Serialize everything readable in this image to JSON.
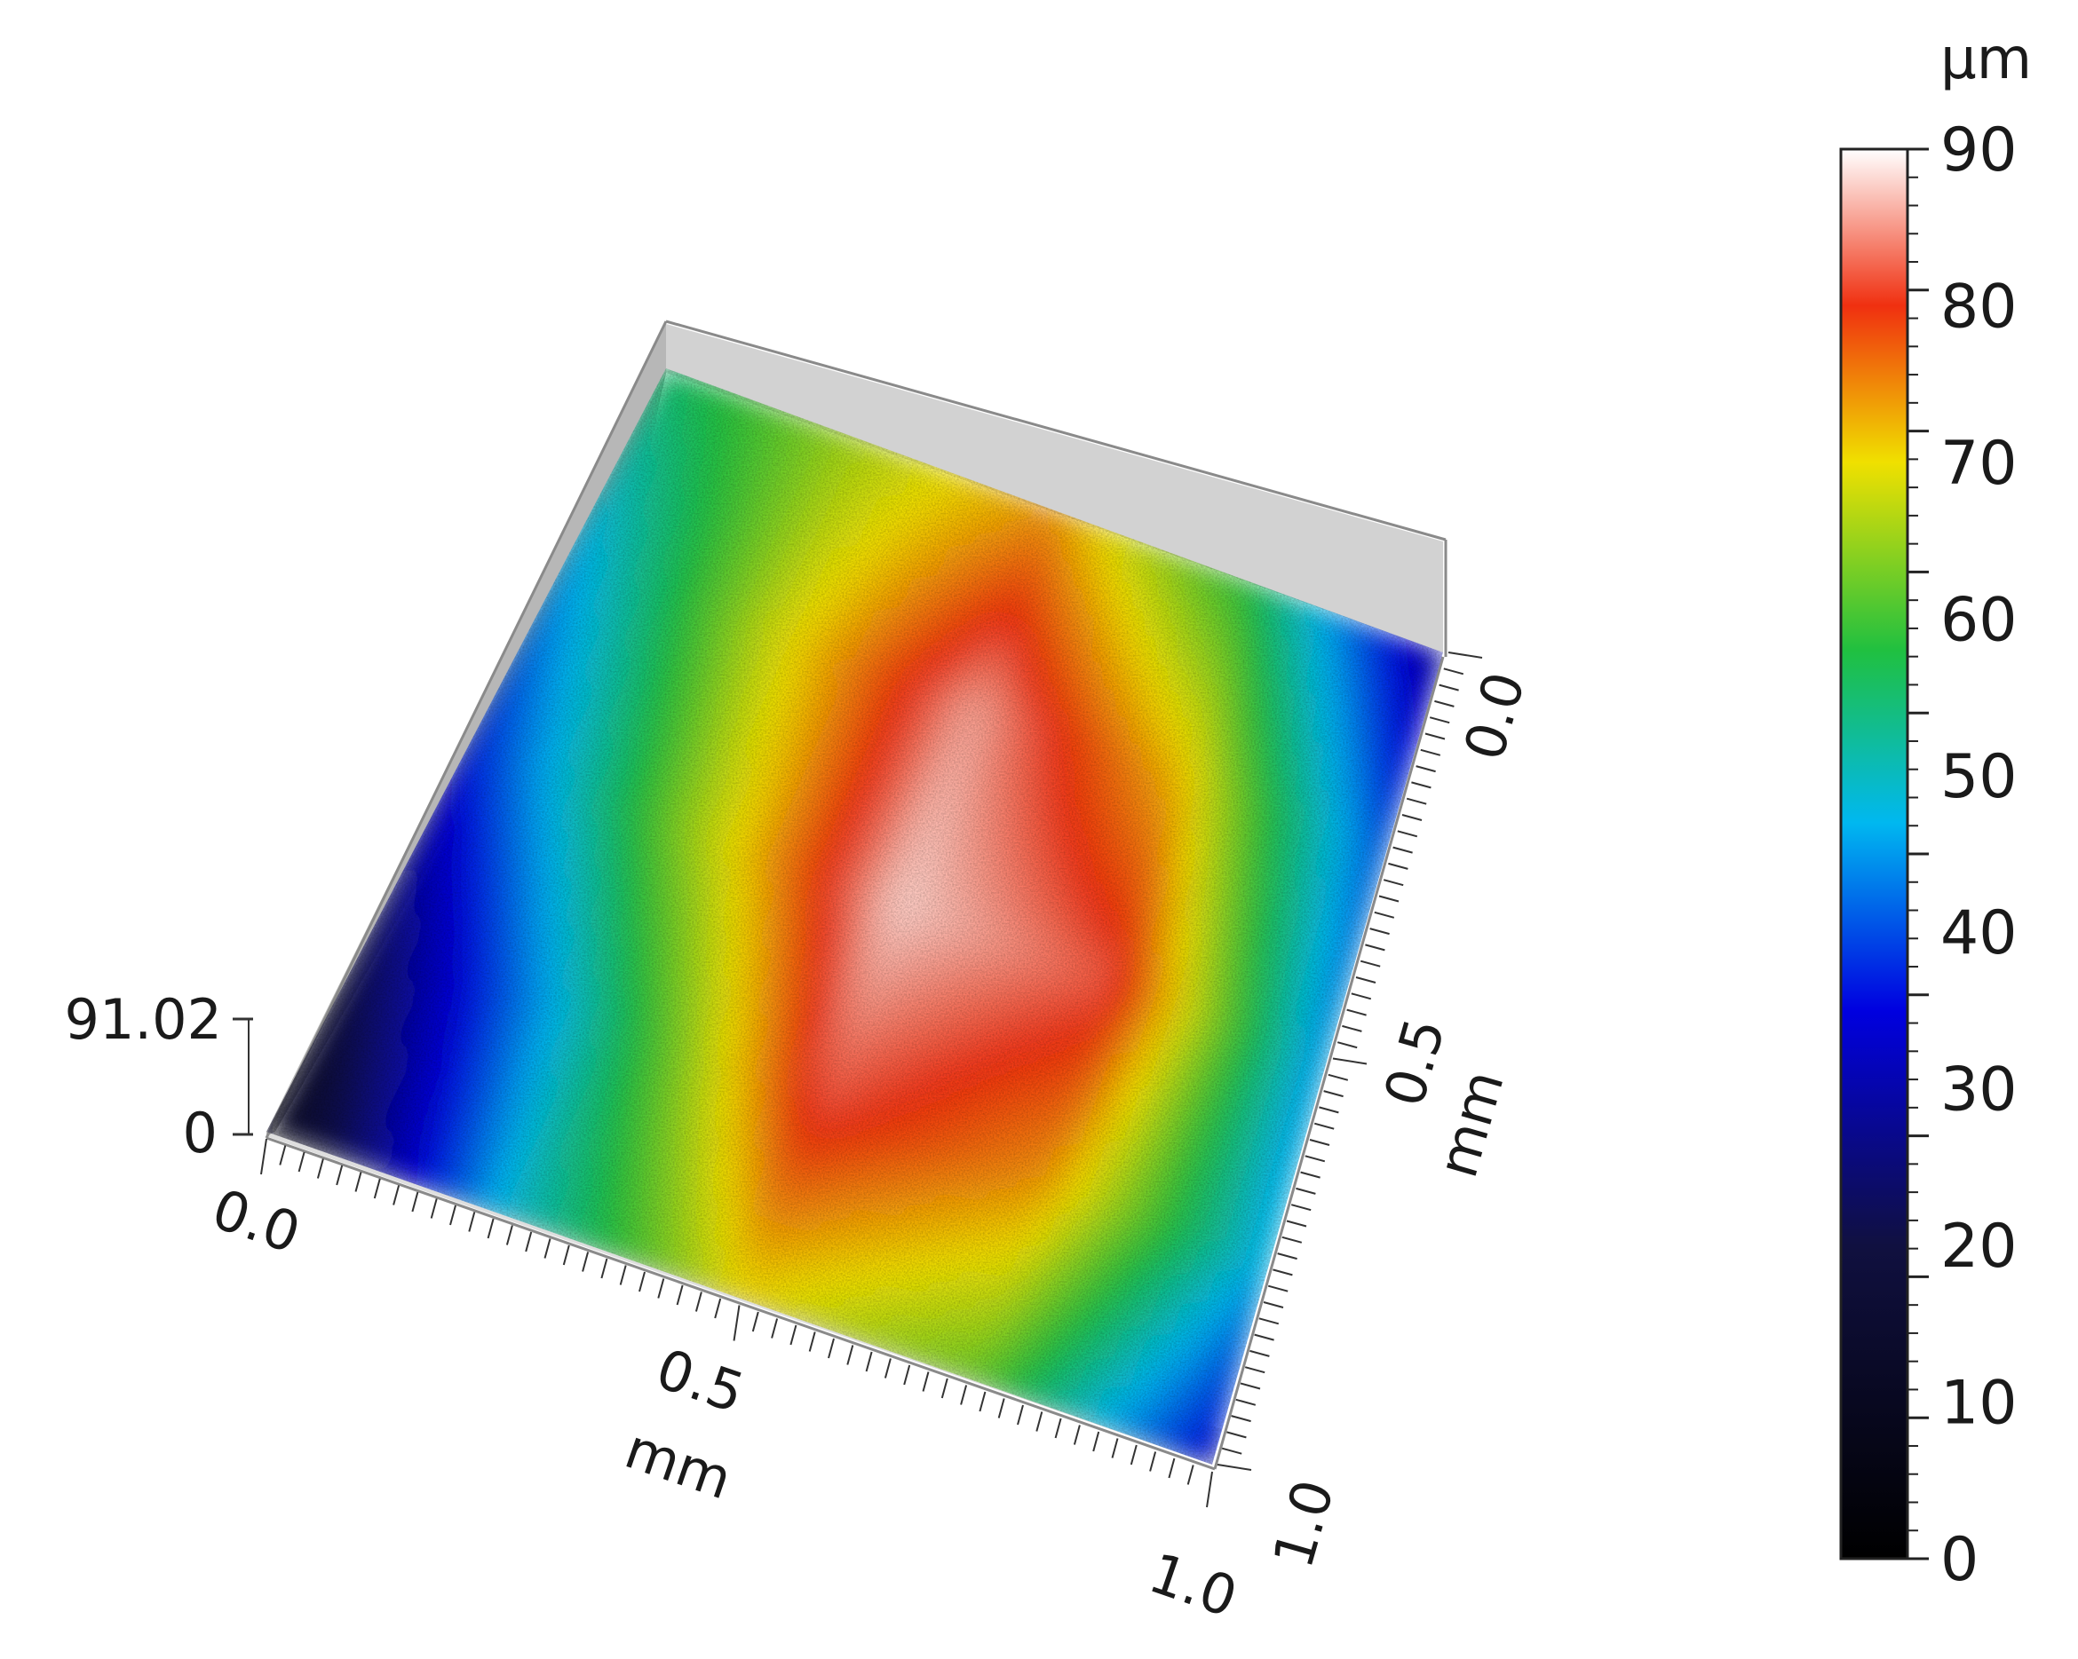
{
  "chart_data": {
    "type": "heatmap",
    "variant": "3d-surface",
    "x_axis": {
      "unit": "mm",
      "ticks": [
        "0.0",
        "0.5",
        "1.0"
      ],
      "range": [
        0,
        1.0
      ]
    },
    "y_axis": {
      "unit": "mm",
      "ticks": [
        "0.0",
        "0.5",
        "1.0"
      ],
      "range": [
        0,
        1.0
      ]
    },
    "z_axis": {
      "ticks": [
        "0",
        "91.02"
      ],
      "range": [
        0,
        91.02
      ]
    },
    "colorbar": {
      "unit": "µm",
      "ticks": [
        "0",
        "10",
        "20",
        "30",
        "40",
        "50",
        "60",
        "70",
        "80",
        "90"
      ],
      "range": [
        0,
        90
      ],
      "stops": [
        {
          "value": 0,
          "color": "#000000"
        },
        {
          "value": 20,
          "color": "#101040"
        },
        {
          "value": 35,
          "color": "#0000e0"
        },
        {
          "value": 47,
          "color": "#00b8f0"
        },
        {
          "value": 58,
          "color": "#20c040"
        },
        {
          "value": 70,
          "color": "#f0e000"
        },
        {
          "value": 80,
          "color": "#f03010"
        },
        {
          "value": 90,
          "color": "#ffffff"
        }
      ]
    },
    "surface": {
      "rows": [
        "y=0.0",
        "y=0.25",
        "y=0.5",
        "y=0.75",
        "y=1.0"
      ],
      "cols": [
        "x=0.0",
        "x=0.25",
        "x=0.5",
        "x=0.75",
        "x=1.0"
      ],
      "z": [
        [
          55,
          66,
          74,
          58,
          28
        ],
        [
          45,
          68,
          86,
          72,
          40
        ],
        [
          36,
          64,
          88,
          82,
          44
        ],
        [
          22,
          52,
          82,
          74,
          46
        ],
        [
          10,
          48,
          70,
          62,
          34
        ]
      ]
    }
  }
}
